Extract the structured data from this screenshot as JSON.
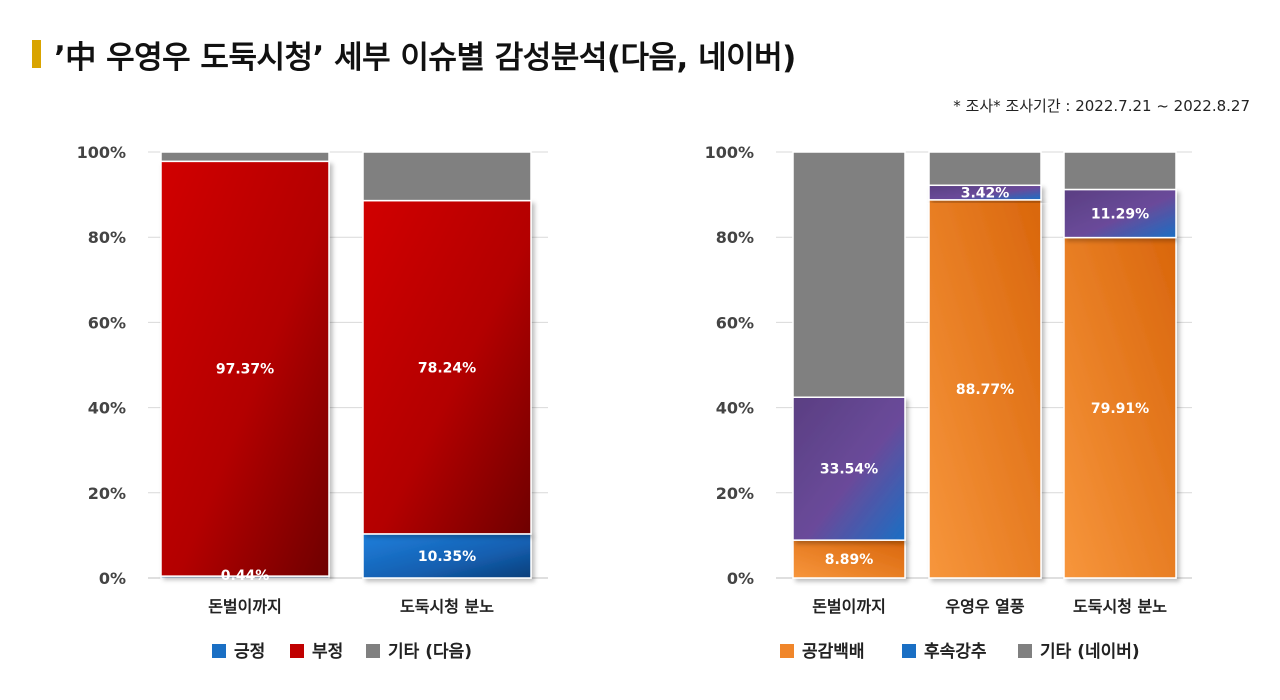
{
  "title": "’中 우영우 도둑시청’ 세부 이슈별 감성분석(다음, 네이버)",
  "subtitle": "* 조사* 조사기간 : 2022.7.21 ~ 2022.8.27",
  "chart_data": [
    {
      "type": "bar",
      "stacked": true,
      "categories": [
        "돈벌이까지",
        "도둑시청 분노"
      ],
      "ylim": [
        0,
        100
      ],
      "yticks": [
        "0%",
        "20%",
        "40%",
        "60%",
        "80%",
        "100%"
      ],
      "grid": true,
      "legend_position": "bottom",
      "series": [
        {
          "name": "긍정",
          "color": "#1a6fc4",
          "values": [
            0.44,
            10.35
          ],
          "labels": [
            "0.44%",
            "10.35%"
          ]
        },
        {
          "name": "부정",
          "color": "#c00000",
          "values": [
            97.37,
            78.24
          ],
          "labels": [
            "97.37%",
            "78.24%"
          ]
        },
        {
          "name": "기타 (다음)",
          "color": "#808080",
          "values": [
            2.19,
            11.41
          ],
          "labels": [
            "",
            ""
          ]
        }
      ]
    },
    {
      "type": "bar",
      "stacked": true,
      "categories": [
        "돈벌이까지",
        "우영우 열풍",
        "도둑시청 분노"
      ],
      "ylim": [
        0,
        100
      ],
      "yticks": [
        "0%",
        "20%",
        "40%",
        "60%",
        "80%",
        "100%"
      ],
      "grid": true,
      "legend_position": "bottom",
      "series": [
        {
          "name": "공감백배",
          "color": "#f0862a",
          "values": [
            8.89,
            88.77,
            79.91
          ],
          "labels": [
            "8.89%",
            "88.77%",
            "79.91%"
          ]
        },
        {
          "name": "후속강추",
          "color": "#1a6fc4",
          "values": [
            33.54,
            3.42,
            11.29
          ],
          "labels": [
            "33.54%",
            "3.42%",
            "11.29%"
          ]
        },
        {
          "name": "기타 (네이버)",
          "color": "#808080",
          "values": [
            57.57,
            7.81,
            8.8
          ],
          "labels": [
            "",
            "",
            ""
          ]
        }
      ]
    }
  ]
}
